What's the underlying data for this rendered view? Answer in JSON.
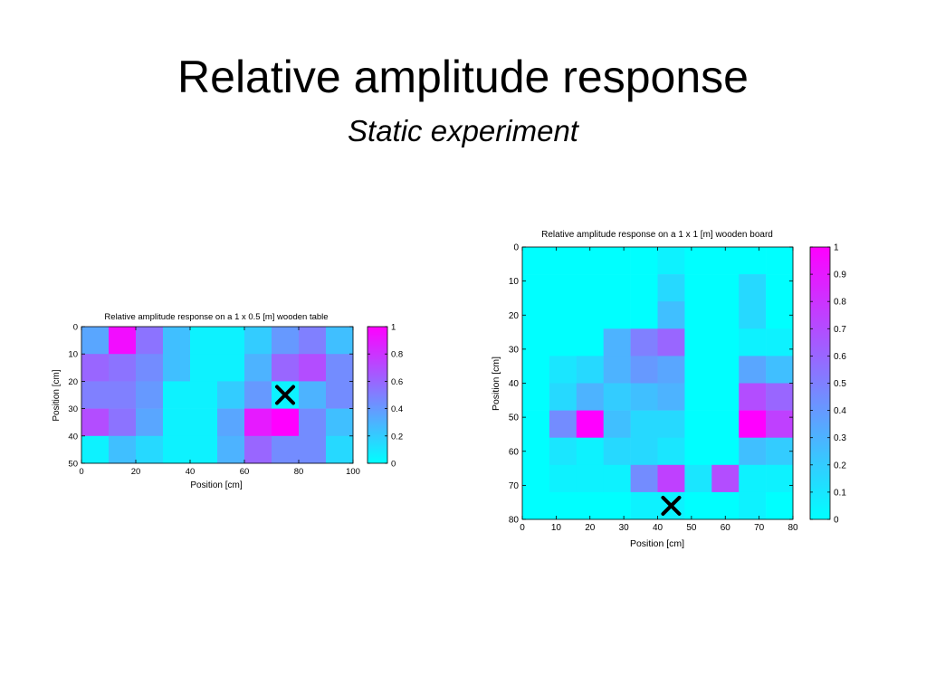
{
  "slide": {
    "title": "Relative amplitude response",
    "subtitle": "Static experiment"
  },
  "colors": {
    "low": "#00ffff",
    "high": "#ff00ff",
    "marker": "#000000"
  },
  "chart_data": [
    {
      "type": "heatmap",
      "title": "Relative amplitude response on a 1 x 0.5 [m] wooden table",
      "xlabel": "Position [cm]",
      "ylabel": "Position [cm]",
      "xlim": [
        0,
        100
      ],
      "ylim": [
        0,
        50
      ],
      "y_reversed": true,
      "xticks": [
        0,
        20,
        40,
        60,
        80,
        100
      ],
      "yticks": [
        0,
        10,
        20,
        30,
        40,
        50
      ],
      "colorbar": {
        "min": 0,
        "max": 1,
        "ticks": [
          0,
          0.2,
          0.4,
          0.6,
          0.8,
          1
        ],
        "tick_labels": [
          "0",
          "0.2",
          "0.4",
          "0.6",
          "0.8",
          "1"
        ]
      },
      "cell_size": [
        10,
        10
      ],
      "values": [
        [
          0.35,
          0.95,
          0.55,
          0.25,
          0.05,
          0.05,
          0.2,
          0.4,
          0.5,
          0.25
        ],
        [
          0.6,
          0.55,
          0.45,
          0.25,
          0.05,
          0.05,
          0.3,
          0.6,
          0.7,
          0.45
        ],
        [
          0.5,
          0.5,
          0.4,
          0.05,
          0.05,
          0.2,
          0.4,
          0.05,
          0.3,
          0.45
        ],
        [
          0.7,
          0.55,
          0.35,
          0.05,
          0.05,
          0.35,
          0.9,
          1.0,
          0.45,
          0.25
        ],
        [
          0.05,
          0.25,
          0.15,
          0.05,
          0.05,
          0.3,
          0.6,
          0.45,
          0.45,
          0.15
        ]
      ],
      "marker": {
        "x": 75,
        "y": 25,
        "symbol": "x"
      }
    },
    {
      "type": "heatmap",
      "title": "Relative amplitude response on a 1 x 1 [m] wooden board",
      "xlabel": "Position [cm]",
      "ylabel": "Position [cm]",
      "xlim": [
        0,
        80
      ],
      "ylim": [
        0,
        80
      ],
      "y_reversed": true,
      "xticks": [
        0,
        10,
        20,
        30,
        40,
        50,
        60,
        70,
        80
      ],
      "yticks": [
        0,
        10,
        20,
        30,
        40,
        50,
        60,
        70,
        80
      ],
      "colorbar": {
        "min": 0,
        "max": 1,
        "ticks": [
          0,
          0.1,
          0.2,
          0.3,
          0.4,
          0.5,
          0.6,
          0.7,
          0.8,
          0.9,
          1
        ],
        "tick_labels": [
          "0",
          "0.1",
          "0.2",
          "0.3",
          "0.4",
          "0.5",
          "0.6",
          "0.7",
          "0.8",
          "0.9",
          "1"
        ]
      },
      "cell_size": [
        8,
        8
      ],
      "values": [
        [
          0,
          0,
          0,
          0,
          0,
          0.05,
          0,
          0,
          0,
          0
        ],
        [
          0,
          0,
          0,
          0,
          0,
          0.15,
          0,
          0,
          0.15,
          0
        ],
        [
          0,
          0,
          0,
          0,
          0,
          0.25,
          0,
          0,
          0.15,
          0
        ],
        [
          0,
          0,
          0,
          0.3,
          0.5,
          0.6,
          0,
          0,
          0.05,
          0.05
        ],
        [
          0,
          0.1,
          0.15,
          0.3,
          0.4,
          0.35,
          0,
          0,
          0.35,
          0.25
        ],
        [
          0,
          0.15,
          0.3,
          0.2,
          0.25,
          0.3,
          0,
          0,
          0.7,
          0.6
        ],
        [
          0,
          0.45,
          1.0,
          0.25,
          0.15,
          0.15,
          0,
          0,
          1.0,
          0.75
        ],
        [
          0,
          0.1,
          0.05,
          0.15,
          0.15,
          0.1,
          0,
          0,
          0.25,
          0.2
        ],
        [
          0,
          0.05,
          0.05,
          0.05,
          0.45,
          0.75,
          0.1,
          0.7,
          0.05,
          0.05
        ],
        [
          0,
          0,
          0,
          0,
          0.05,
          0.05,
          0,
          0,
          0.05,
          0
        ]
      ],
      "marker": {
        "x": 44,
        "y": 76,
        "symbol": "x"
      }
    }
  ]
}
